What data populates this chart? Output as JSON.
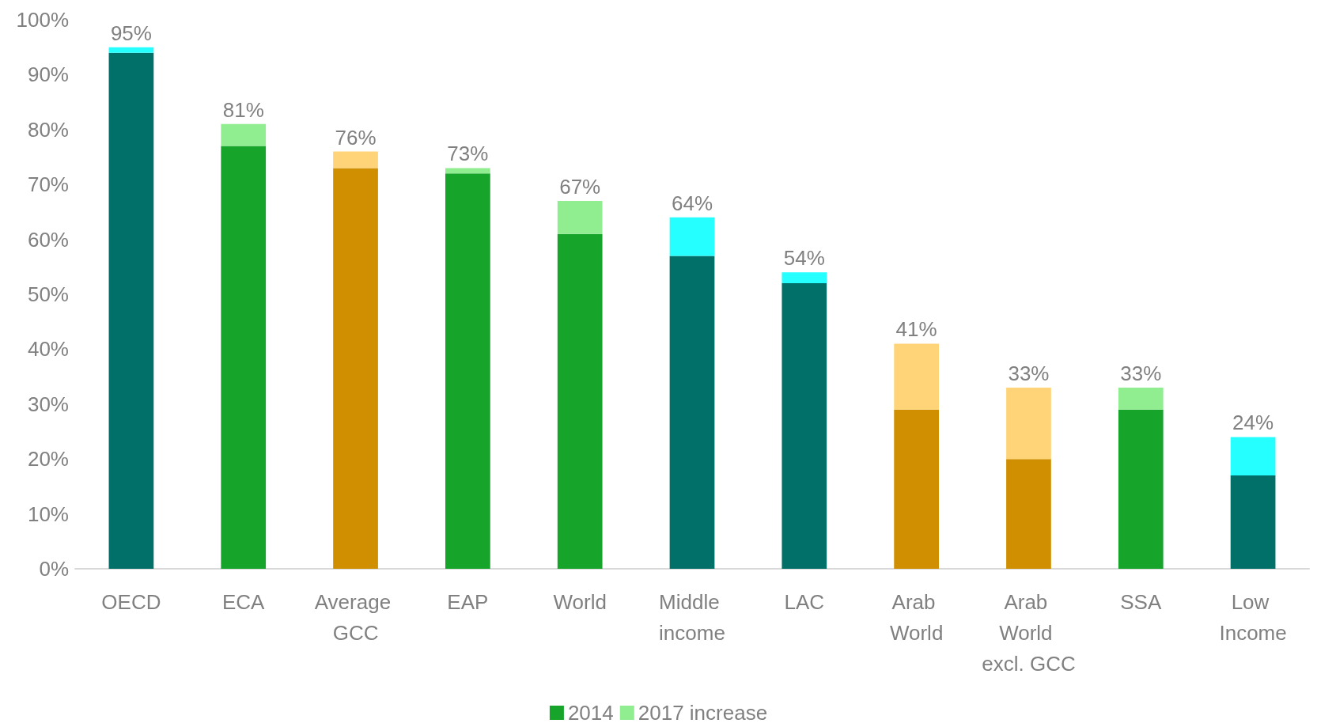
{
  "chart_data": {
    "type": "bar",
    "stacked": true,
    "categories": [
      "OECD",
      "ECA",
      "Average GCC",
      "EAP",
      "World",
      "Middle income",
      "LAC",
      "Arab World",
      "Arab World excl. GCC",
      "SSA",
      "Low Income"
    ],
    "series": [
      {
        "name": "2014",
        "color": "#17a42b",
        "values": [
          94,
          77,
          73,
          72,
          61,
          57,
          52,
          29,
          20,
          29,
          17
        ],
        "colors": [
          "#007068",
          "#17a42b",
          "#d08f00",
          "#17a42b",
          "#17a42b",
          "#007068",
          "#007068",
          "#d08f00",
          "#d08f00",
          "#17a42b",
          "#007068"
        ]
      },
      {
        "name": "2017 increase",
        "color": "#90ee90",
        "values": [
          1,
          4,
          3,
          1,
          6,
          7,
          2,
          12,
          13,
          4,
          7
        ],
        "colors": [
          "#26ffff",
          "#90ee90",
          "#ffd479",
          "#90ee90",
          "#90ee90",
          "#26ffff",
          "#26ffff",
          "#ffd479",
          "#ffd479",
          "#90ee90",
          "#26ffff"
        ]
      }
    ],
    "totals": [
      "95%",
      "81%",
      "76%",
      "73%",
      "67%",
      "64%",
      "54%",
      "41%",
      "33%",
      "33%",
      "24%"
    ],
    "ylim": [
      0,
      100
    ],
    "yticks": [
      {
        "value": 0,
        "label": "0%"
      },
      {
        "value": 10,
        "label": "10%"
      },
      {
        "value": 20,
        "label": "20%"
      },
      {
        "value": 30,
        "label": "30%"
      },
      {
        "value": 40,
        "label": "40%"
      },
      {
        "value": 50,
        "label": "50%"
      },
      {
        "value": 60,
        "label": "60%"
      },
      {
        "value": 70,
        "label": "70%"
      },
      {
        "value": 80,
        "label": "80%"
      },
      {
        "value": 90,
        "label": "90%"
      },
      {
        "value": 100,
        "label": "100%"
      }
    ],
    "grid": false,
    "legend": "bottom"
  }
}
